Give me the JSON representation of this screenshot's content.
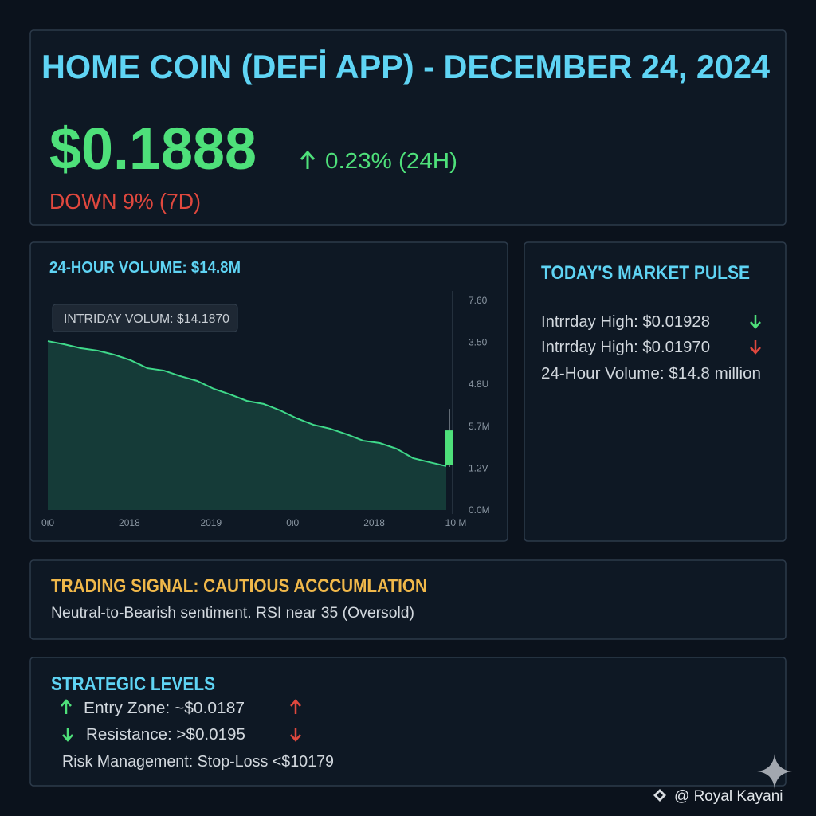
{
  "header": {
    "title": "HOME COIN (DEFİ APP) - DECEMBER 24, 2024",
    "price": "$0.1888",
    "change_24h": "0.23% (24H)",
    "change_7d": "DOWN 9% (7D)"
  },
  "volume_panel": {
    "title": "24-HOUR VOLUME: $14.8M",
    "tooltip": "INTRIDAY VOLUM: $14.1870",
    "chart_data": {
      "type": "area",
      "color": "#3fd98a",
      "ylim": [
        0,
        100
      ],
      "values": [
        78.5,
        77.0,
        75.2,
        74.1,
        72.2,
        69.6,
        65.9,
        64.8,
        62.2,
        60.0,
        56.3,
        53.7,
        50.7,
        49.3,
        46.3,
        42.6,
        39.6,
        37.8,
        35.2,
        32.2,
        31.1,
        28.5,
        24.1,
        22.2,
        20.4
      ],
      "candle": {
        "open": 21,
        "close": 37,
        "high": 47,
        "low": 20,
        "color": "#4ee07a"
      },
      "ytick_labels": [
        "7.60",
        "3.50",
        "4.8U",
        "5.7M",
        "1.2V",
        "0.0M"
      ],
      "xtick_labels": [
        "0ι0",
        "2018",
        "2019",
        "0ι0",
        "2018",
        "10 M"
      ]
    }
  },
  "pulse_panel": {
    "title": "TODAY'S MARKET PULSE",
    "lines": [
      "Intrrday High: $0.01928",
      "Intrrday High: $0.01970",
      "24-Hour Volume: $14.8 million"
    ]
  },
  "signal_panel": {
    "title": "TRADING SIGNAL: CAUTIOUS ACCCUMLATION",
    "text": "Neutral-to-Bearish sentiment. RSI near 35 (Oversold)"
  },
  "levels_panel": {
    "title": "STRATEGIC LEVELS",
    "lines": [
      "Entry Zone: ~$0.0187",
      "Resistance: >$0.0195",
      "Risk Management: Stop-Loss <$10179"
    ]
  },
  "watermark": "@ Royal Kayani"
}
